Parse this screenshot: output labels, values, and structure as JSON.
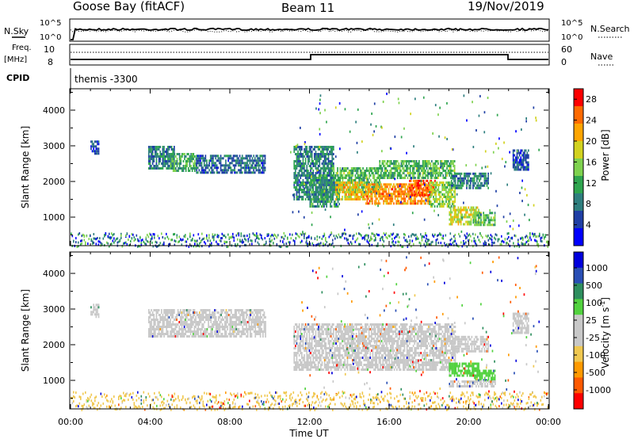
{
  "header": {
    "station": "Goose Bay (fitACF)",
    "beam": "Beam 11",
    "date": "19/Nov/2019"
  },
  "nsky_panel": {
    "label": "N.Sky",
    "ticks_left": [
      "10^5",
      "10^0"
    ],
    "ticks_right": [
      "10^5",
      "10^0"
    ],
    "legend_label": "N.Search"
  },
  "freq_panel": {
    "label_line1": "Freq.",
    "label_line2": "[MHz]",
    "ticks_left": [
      "10",
      "8"
    ],
    "ticks_right": [
      "60",
      "0"
    ],
    "legend_label": "Nave"
  },
  "cpid_panel": {
    "label": "CPID",
    "value": "themis -3300"
  },
  "colors": {
    "power": [
      "#0000ff",
      "#1f3fa5",
      "#2f7f7f",
      "#2fa54f",
      "#7fd24f",
      "#d2d21f",
      "#ffa500",
      "#ff6a00",
      "#ff0000"
    ],
    "velocity": [
      "#0000dd",
      "#2a4fb5",
      "#2f8f5f",
      "#52d23f",
      "#c8c8c8",
      "#c8c8c8",
      "#f0c850",
      "#ff9a00",
      "#ff5a00",
      "#ff0000"
    ]
  },
  "chart_data": [
    {
      "type": "heatmap",
      "ylabel": "Slant Range [km]",
      "yticks": [
        "1000",
        "2000",
        "3000",
        "4000"
      ],
      "ylim": [
        200,
        4600
      ],
      "xlim": [
        0,
        24
      ],
      "colorbar": {
        "label": "Power [dB]",
        "ticks": [
          "4",
          "8",
          "12",
          "16",
          "20",
          "24",
          "28"
        ],
        "range": [
          0,
          30
        ]
      },
      "regions": [
        {
          "t0": 1.0,
          "t1": 1.4,
          "r0": 2800,
          "r1": 3150,
          "v": 6
        },
        {
          "t0": 3.9,
          "t1": 5.2,
          "r0": 2350,
          "r1": 3000,
          "v": 8
        },
        {
          "t0": 5.0,
          "t1": 6.3,
          "r0": 2300,
          "r1": 2800,
          "v": 12
        },
        {
          "t0": 6.3,
          "t1": 9.8,
          "r0": 2250,
          "r1": 2750,
          "v": 7
        },
        {
          "t0": 11.2,
          "t1": 13.2,
          "r0": 1500,
          "r1": 3000,
          "v": 9
        },
        {
          "t0": 13.0,
          "t1": 15.5,
          "r0": 1700,
          "r1": 2400,
          "v": 13
        },
        {
          "t0": 12.0,
          "t1": 13.5,
          "r0": 1300,
          "r1": 2200,
          "v": 10
        },
        {
          "t0": 13.3,
          "t1": 14.8,
          "r0": 1500,
          "r1": 2000,
          "v": 20
        },
        {
          "t0": 14.8,
          "t1": 18.0,
          "r0": 1350,
          "r1": 1950,
          "v": 23
        },
        {
          "t0": 17.0,
          "t1": 18.3,
          "r0": 1600,
          "r1": 2050,
          "v": 26
        },
        {
          "t0": 15.5,
          "t1": 19.3,
          "r0": 2100,
          "r1": 2600,
          "v": 13
        },
        {
          "t0": 18.0,
          "t1": 19.3,
          "r0": 1300,
          "r1": 2000,
          "v": 16
        },
        {
          "t0": 19.1,
          "t1": 21.0,
          "r0": 1800,
          "r1": 2250,
          "v": 9
        },
        {
          "t0": 19.0,
          "t1": 20.5,
          "r0": 800,
          "r1": 1300,
          "v": 18
        },
        {
          "t0": 20.2,
          "t1": 21.3,
          "r0": 800,
          "r1": 1150,
          "v": 13
        },
        {
          "t0": 22.2,
          "t1": 23.0,
          "r0": 2300,
          "r1": 2900,
          "v": 6
        }
      ]
    },
    {
      "type": "heatmap",
      "ylabel": "Slant Range [km]",
      "yticks": [
        "1000",
        "2000",
        "3000",
        "4000"
      ],
      "ylim": [
        200,
        4600
      ],
      "xlim": [
        0,
        24
      ],
      "xlabel": "Time UT",
      "xticks": [
        "00:00",
        "04:00",
        "08:00",
        "12:00",
        "16:00",
        "20:00",
        "00:00"
      ],
      "colorbar": {
        "label": "Velocity [m s-1]",
        "label_text": "Velocity",
        "label_unit_open": "[m s",
        "label_unit_exp": "-1",
        "label_unit_close": "]",
        "ticks": [
          "1000",
          "500",
          "100",
          "25",
          "-25",
          "-100",
          "-500",
          "-1000"
        ]
      },
      "regions": [
        {
          "t0": 1.0,
          "t1": 1.4,
          "r0": 2800,
          "r1": 3150,
          "c": 4
        },
        {
          "t0": 3.9,
          "t1": 9.8,
          "r0": 2250,
          "r1": 3000,
          "c": 4
        },
        {
          "t0": 11.2,
          "t1": 19.3,
          "r0": 1300,
          "r1": 2600,
          "c": 4
        },
        {
          "t0": 19.1,
          "t1": 21.0,
          "r0": 1800,
          "r1": 2250,
          "c": 4
        },
        {
          "t0": 19.0,
          "t1": 20.5,
          "r0": 1100,
          "r1": 1500,
          "c": 3
        },
        {
          "t0": 20.2,
          "t1": 21.3,
          "r0": 1000,
          "r1": 1300,
          "c": 3
        },
        {
          "t0": 19.0,
          "t1": 21.3,
          "r0": 850,
          "r1": 1000,
          "c": 5
        },
        {
          "t0": 22.2,
          "t1": 23.0,
          "r0": 2300,
          "r1": 2900,
          "c": 5
        }
      ]
    }
  ]
}
